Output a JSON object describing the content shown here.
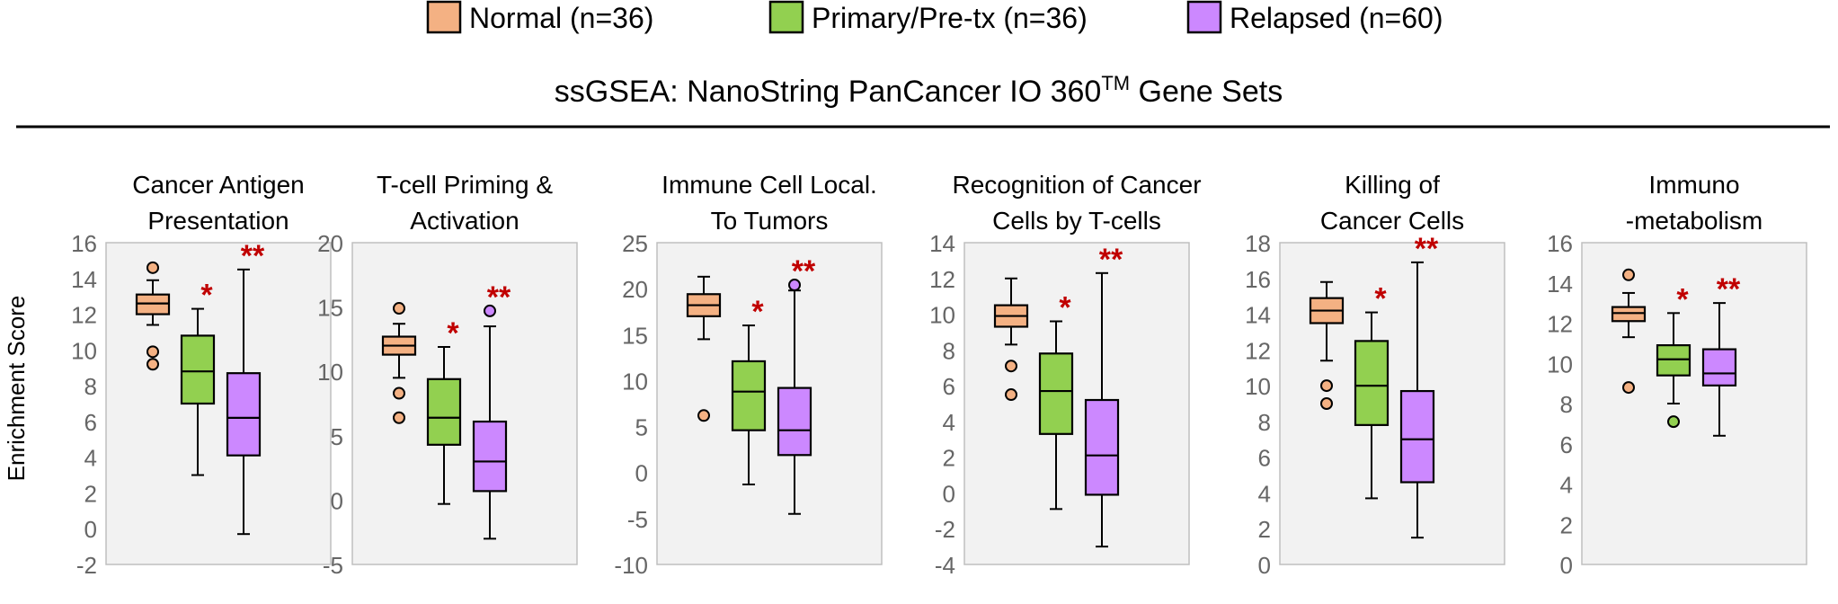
{
  "chart_data": {
    "type": "boxplot",
    "title": "ssGSEA: NanoString PanCancer IO 360",
    "title_superscript": "TM",
    "title_suffix": " Gene Sets",
    "ylabel": "Enrichment Score",
    "legend_position": "top",
    "groups": [
      {
        "label": "Normal (n=36)",
        "color": "#F4B183"
      },
      {
        "label": "Primary/Pre-tx (n=36)",
        "color": "#92D050"
      },
      {
        "label": "Relapsed (n=60)",
        "color": "#CC88FF"
      }
    ],
    "significance_color": "#C00000",
    "panels": [
      {
        "title_lines": [
          "Cancer Antigen",
          "Presentation"
        ],
        "ylim": [
          -2,
          16
        ],
        "yticks": [
          -2,
          0,
          2,
          4,
          6,
          8,
          10,
          12,
          14,
          16
        ],
        "boxes": [
          {
            "whisker_low": 11.4,
            "q1": 12.0,
            "median": 12.6,
            "q3": 13.1,
            "whisker_high": 13.9,
            "outliers": [
              14.6,
              9.9,
              9.2
            ]
          },
          {
            "whisker_low": 3.0,
            "q1": 7.0,
            "median": 8.8,
            "q3": 10.8,
            "whisker_high": 12.3,
            "outliers": [],
            "sig": "*"
          },
          {
            "whisker_low": -0.3,
            "q1": 4.1,
            "median": 6.2,
            "q3": 8.7,
            "whisker_high": 14.5,
            "outliers": [],
            "sig": "**"
          }
        ]
      },
      {
        "title_lines": [
          "T-cell Priming &",
          "Activation"
        ],
        "ylim": [
          -5,
          20
        ],
        "yticks": [
          -5,
          0,
          5,
          10,
          15,
          20
        ],
        "boxes": [
          {
            "whisker_low": 9.5,
            "q1": 11.3,
            "median": 12.0,
            "q3": 12.7,
            "whisker_high": 13.7,
            "outliers": [
              14.9,
              8.3,
              6.4
            ]
          },
          {
            "whisker_low": -0.3,
            "q1": 4.3,
            "median": 6.4,
            "q3": 9.4,
            "whisker_high": 11.9,
            "outliers": [],
            "sig": "*"
          },
          {
            "whisker_low": -3.0,
            "q1": 0.7,
            "median": 3.0,
            "q3": 6.1,
            "whisker_high": 13.5,
            "outliers": [
              14.7
            ],
            "sig": "**"
          }
        ]
      },
      {
        "title_lines": [
          "Immune Cell Local.",
          "To Tumors"
        ],
        "ylim": [
          -10,
          25
        ],
        "yticks": [
          -10,
          -5,
          0,
          5,
          10,
          15,
          20,
          25
        ],
        "boxes": [
          {
            "whisker_low": 14.5,
            "q1": 17.0,
            "median": 18.2,
            "q3": 19.4,
            "whisker_high": 21.3,
            "outliers": [
              6.2
            ]
          },
          {
            "whisker_low": -1.3,
            "q1": 4.6,
            "median": 8.8,
            "q3": 12.1,
            "whisker_high": 16.0,
            "outliers": [],
            "sig": "*"
          },
          {
            "whisker_low": -4.5,
            "q1": 1.9,
            "median": 4.6,
            "q3": 9.2,
            "whisker_high": 19.8,
            "outliers": [
              20.4
            ],
            "sig": "**"
          }
        ]
      },
      {
        "title_lines": [
          "Recognition of Cancer",
          "Cells by T-cells"
        ],
        "ylim": [
          -4,
          14
        ],
        "yticks": [
          -4,
          -2,
          0,
          2,
          4,
          6,
          8,
          10,
          12,
          14
        ],
        "boxes": [
          {
            "whisker_low": 8.3,
            "q1": 9.3,
            "median": 9.9,
            "q3": 10.5,
            "whisker_high": 12.0,
            "outliers": [
              7.1,
              5.5
            ]
          },
          {
            "whisker_low": -0.9,
            "q1": 3.3,
            "median": 5.7,
            "q3": 7.8,
            "whisker_high": 9.6,
            "outliers": [],
            "sig": "*"
          },
          {
            "whisker_low": -3.0,
            "q1": -0.1,
            "median": 2.1,
            "q3": 5.2,
            "whisker_high": 12.3,
            "outliers": [],
            "sig": "**"
          }
        ]
      },
      {
        "title_lines": [
          "Killing of",
          "Cancer Cells"
        ],
        "ylim": [
          0,
          18
        ],
        "yticks": [
          0,
          2,
          4,
          6,
          8,
          10,
          12,
          14,
          16,
          18
        ],
        "boxes": [
          {
            "whisker_low": 11.4,
            "q1": 13.5,
            "median": 14.2,
            "q3": 14.9,
            "whisker_high": 15.8,
            "outliers": [
              10.0,
              9.0
            ]
          },
          {
            "whisker_low": 3.7,
            "q1": 7.8,
            "median": 10.0,
            "q3": 12.5,
            "whisker_high": 14.1,
            "outliers": [],
            "sig": "*"
          },
          {
            "whisker_low": 1.5,
            "q1": 4.6,
            "median": 7.0,
            "q3": 9.7,
            "whisker_high": 16.9,
            "outliers": [],
            "sig": "**"
          }
        ]
      },
      {
        "title_lines": [
          "Immuno",
          "-metabolism"
        ],
        "ylim": [
          0,
          16
        ],
        "yticks": [
          0,
          2,
          4,
          6,
          8,
          10,
          12,
          14,
          16
        ],
        "boxes": [
          {
            "whisker_low": 11.3,
            "q1": 12.1,
            "median": 12.5,
            "q3": 12.8,
            "whisker_high": 13.5,
            "outliers": [
              14.4,
              8.8
            ]
          },
          {
            "whisker_low": 8.0,
            "q1": 9.4,
            "median": 10.2,
            "q3": 10.9,
            "whisker_high": 12.5,
            "outliers": [
              7.1
            ],
            "sig": "*"
          },
          {
            "whisker_low": 6.4,
            "q1": 8.9,
            "median": 9.5,
            "q3": 10.7,
            "whisker_high": 13.0,
            "outliers": [],
            "sig": "**"
          }
        ]
      }
    ]
  }
}
